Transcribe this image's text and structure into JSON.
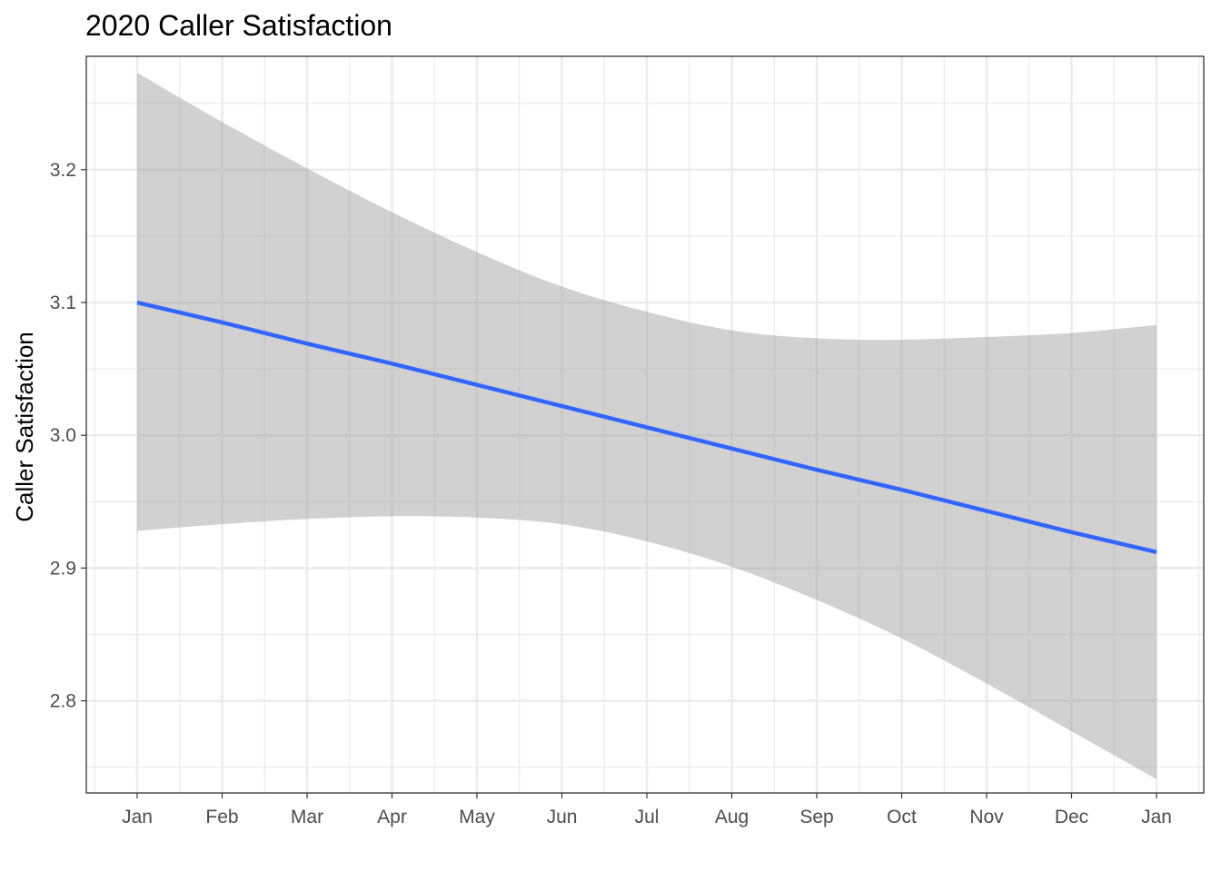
{
  "chart_data": {
    "type": "line",
    "title": "2020 Caller Satisfaction",
    "xlabel": "",
    "ylabel": "Caller Satisfaction",
    "x_ticks": [
      "Jan",
      "Feb",
      "Mar",
      "Apr",
      "May",
      "Jun",
      "Jul",
      "Aug",
      "Sep",
      "Oct",
      "Nov",
      "Dec",
      "Jan"
    ],
    "y_ticks": [
      "2.8",
      "2.9",
      "3.0",
      "3.1",
      "3.2"
    ],
    "ylim": [
      2.7306,
      3.2854
    ],
    "grid": true,
    "series": [
      {
        "values": [
          3.1,
          3.085,
          3.069,
          3.054,
          3.038,
          3.022,
          3.006,
          2.99,
          2.974,
          2.959,
          2.943,
          2.927,
          2.912
        ],
        "color": "#3366ff"
      }
    ],
    "confidence_band": {
      "upper": [
        3.273,
        3.236,
        3.201,
        3.168,
        3.138,
        3.112,
        3.093,
        3.079,
        3.073,
        3.072,
        3.074,
        3.077,
        3.083
      ],
      "lower": [
        2.928,
        2.933,
        2.937,
        2.939,
        2.938,
        2.933,
        2.92,
        2.901,
        2.876,
        2.847,
        2.813,
        2.777,
        2.741
      ],
      "color": "#999999",
      "opacity": 0.45
    },
    "panel_border": "#333333"
  }
}
